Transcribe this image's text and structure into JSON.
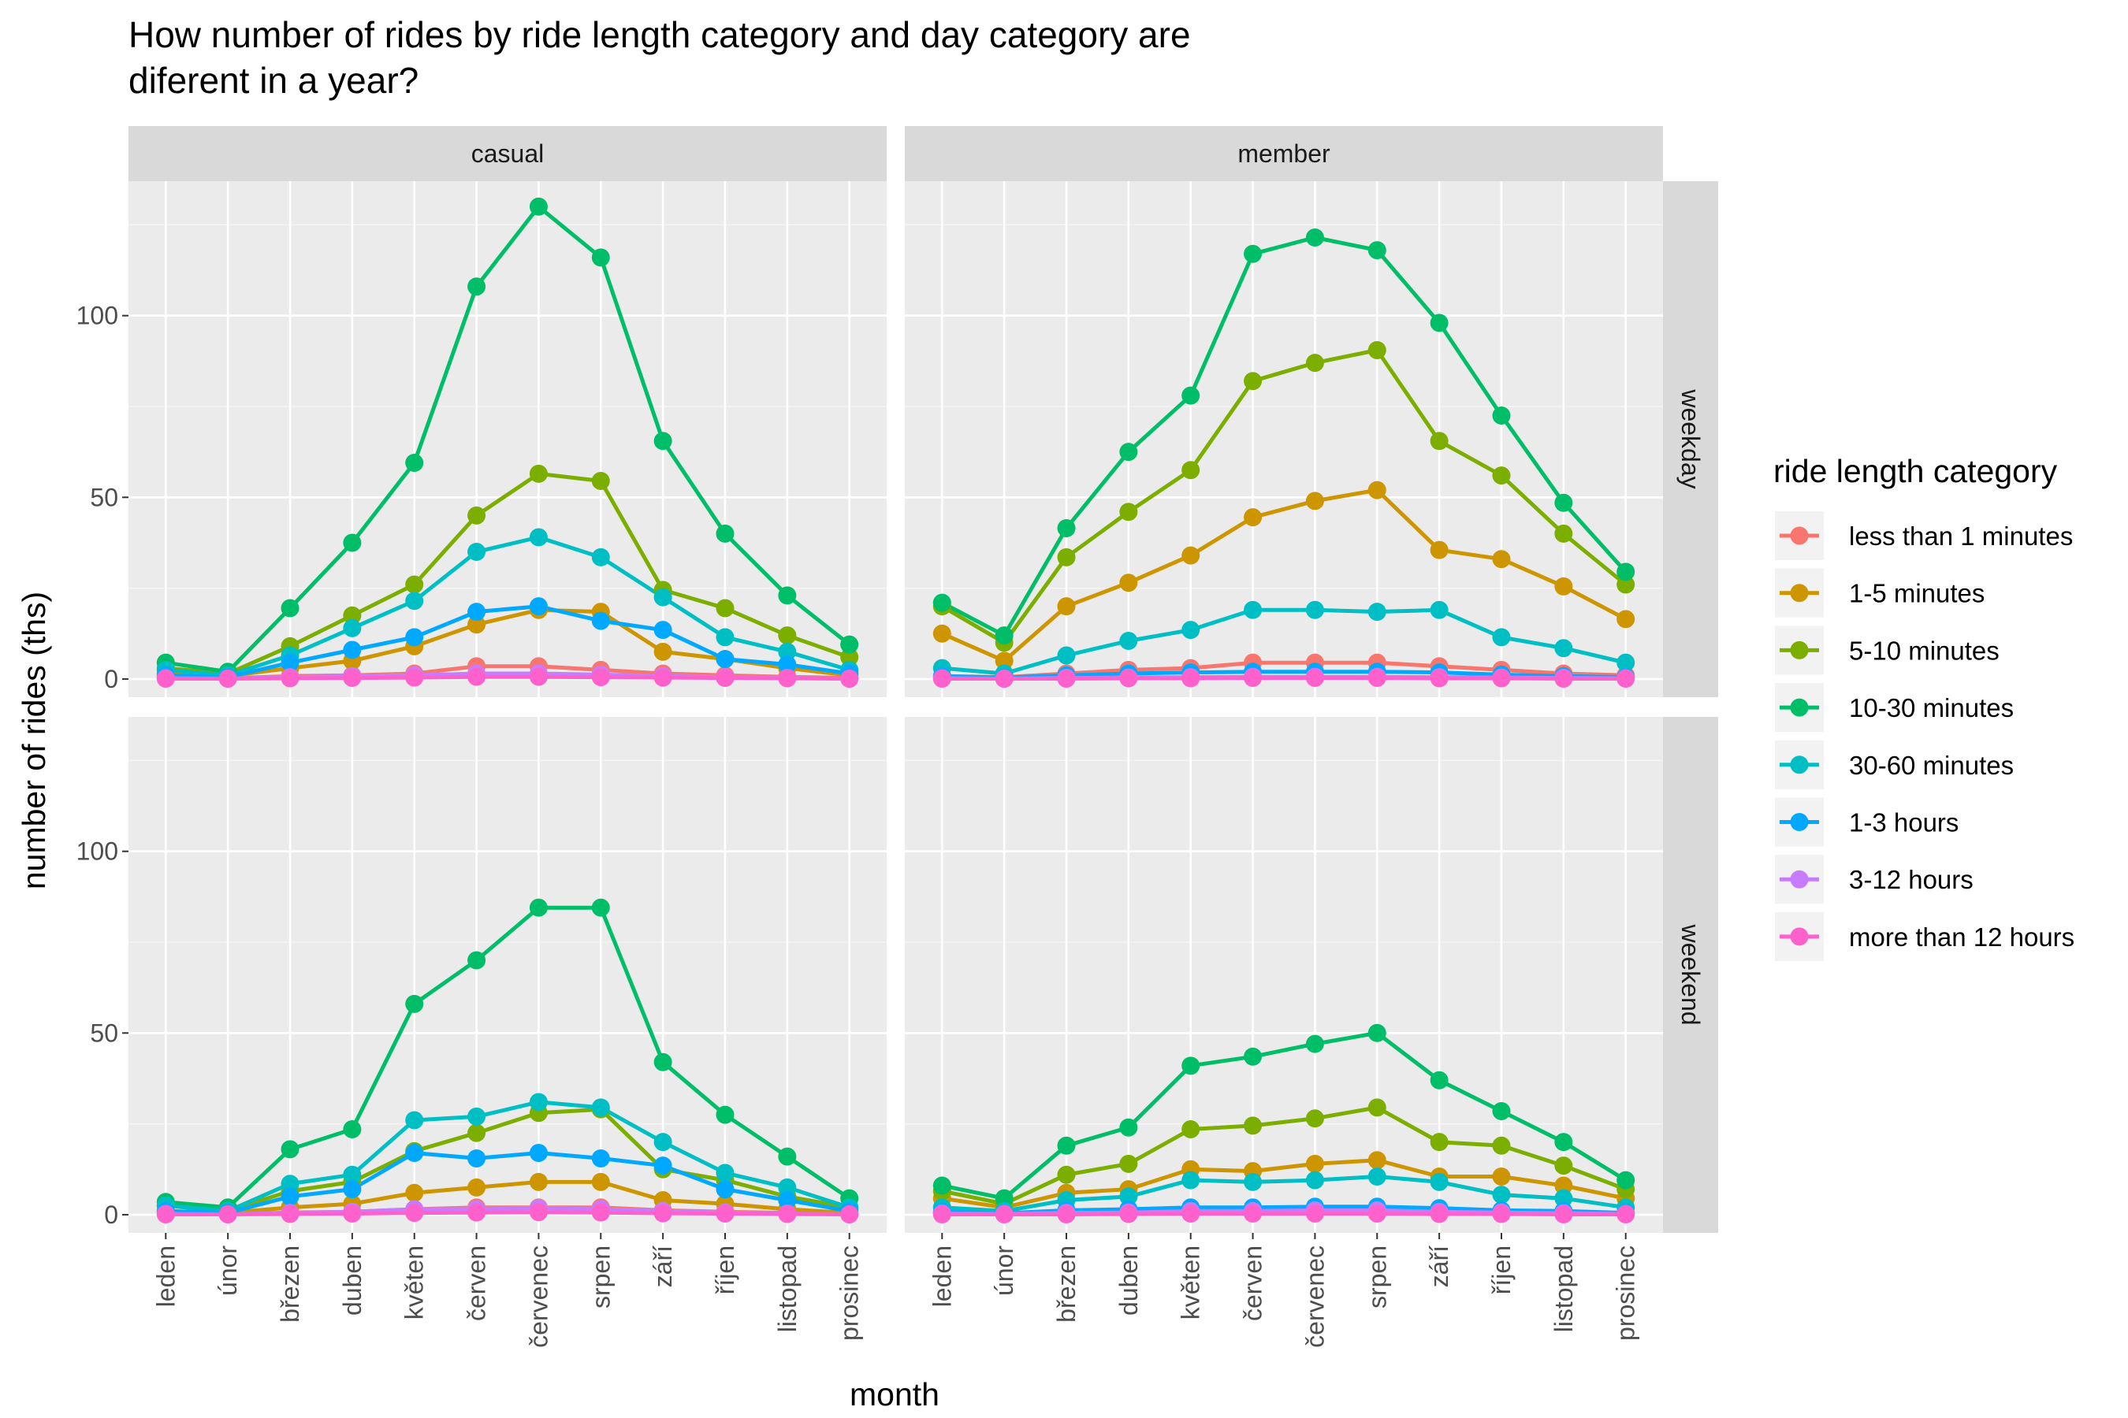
{
  "chart_data": {
    "type": "line",
    "title": "How number of rides by ride length category and day category are diferent in a year?",
    "title_lines": [
      "How number of rides by ride length category and day category are",
      "diferent in a year?"
    ],
    "xlabel": "month",
    "ylabel": "number of rides (ths)",
    "ylim": [
      -5,
      137
    ],
    "yticks": [
      0,
      50,
      100
    ],
    "ytick_labels": [
      "0",
      "50",
      "100"
    ],
    "categories": [
      "leden",
      "únor",
      "březen",
      "duben",
      "květen",
      "červen",
      "červenec",
      "srpen",
      "září",
      "říjen",
      "listopad",
      "prosinec"
    ],
    "grid": true,
    "legend_position": "right",
    "legend_title": "ride length category",
    "facet_cols": [
      "casual",
      "member"
    ],
    "facet_rows": [
      "weekday",
      "weekend"
    ],
    "legend": [
      {
        "name": "less than 1 minutes",
        "color": "#F8766D"
      },
      {
        "name": "1-5 minutes",
        "color": "#CD9600"
      },
      {
        "name": "5-10 minutes",
        "color": "#7CAE00"
      },
      {
        "name": "10-30 minutes",
        "color": "#00BE67"
      },
      {
        "name": "30-60 minutes",
        "color": "#00BFC4"
      },
      {
        "name": "1-3 hours",
        "color": "#00A9FF"
      },
      {
        "name": "3-12 hours",
        "color": "#C77CFF"
      },
      {
        "name": "more than 12 hours",
        "color": "#FF61CC"
      }
    ],
    "panels": [
      {
        "col": "casual",
        "row": "weekday",
        "series": [
          {
            "name": "less than 1 minutes",
            "values": [
              0.3,
              0.2,
              0.8,
              1.0,
              1.5,
              3.5,
              3.5,
              2.5,
              1.5,
              1.0,
              0.6,
              0.3
            ]
          },
          {
            "name": "1-5 minutes",
            "values": [
              1.5,
              0.8,
              3.0,
              5.0,
              9.0,
              15.0,
              19.0,
              18.5,
              7.5,
              5.5,
              3.0,
              1.0
            ]
          },
          {
            "name": "5-10 minutes",
            "values": [
              3.0,
              1.5,
              9.0,
              17.5,
              26.0,
              45.0,
              56.5,
              54.5,
              24.5,
              19.5,
              12.0,
              6.0
            ]
          },
          {
            "name": "10-30 minutes",
            "values": [
              4.5,
              2.0,
              19.5,
              37.5,
              59.5,
              108.0,
              130.0,
              116.0,
              65.5,
              40.0,
              23.0,
              9.5
            ]
          },
          {
            "name": "30-60 minutes",
            "values": [
              2.5,
              1.0,
              6.5,
              14.0,
              21.5,
              35.0,
              39.0,
              33.5,
              22.5,
              11.5,
              7.5,
              2.5
            ]
          },
          {
            "name": "1-3 hours",
            "values": [
              1.0,
              0.5,
              4.5,
              8.0,
              11.5,
              18.5,
              20.0,
              16.0,
              13.5,
              5.5,
              4.0,
              1.5
            ]
          },
          {
            "name": "3-12 hours",
            "values": [
              0.2,
              0.1,
              0.5,
              0.8,
              1.0,
              1.5,
              1.5,
              1.2,
              0.8,
              0.5,
              0.3,
              0.1
            ]
          },
          {
            "name": "more than 12 hours",
            "values": [
              0.1,
              0.1,
              0.2,
              0.3,
              0.4,
              0.6,
              0.6,
              0.5,
              0.4,
              0.3,
              0.2,
              0.1
            ]
          }
        ]
      },
      {
        "col": "member",
        "row": "weekday",
        "series": [
          {
            "name": "less than 1 minutes",
            "values": [
              0.8,
              0.5,
              1.5,
              2.5,
              3.0,
              4.5,
              4.5,
              4.5,
              3.5,
              2.5,
              1.5,
              1.0
            ]
          },
          {
            "name": "1-5 minutes",
            "values": [
              12.5,
              5.0,
              20.0,
              26.5,
              34.0,
              44.5,
              49.0,
              52.0,
              35.5,
              33.0,
              25.5,
              16.5
            ]
          },
          {
            "name": "5-10 minutes",
            "values": [
              20.0,
              10.0,
              33.5,
              46.0,
              57.5,
              82.0,
              87.0,
              90.5,
              65.5,
              56.0,
              40.0,
              26.0
            ]
          },
          {
            "name": "10-30 minutes",
            "values": [
              21.0,
              12.0,
              41.5,
              62.5,
              78.0,
              117.0,
              121.5,
              118.0,
              98.0,
              72.5,
              48.5,
              29.5
            ]
          },
          {
            "name": "30-60 minutes",
            "values": [
              3.0,
              1.5,
              6.5,
              10.5,
              13.5,
              19.0,
              19.0,
              18.5,
              19.0,
              11.5,
              8.5,
              4.5
            ]
          },
          {
            "name": "1-3 hours",
            "values": [
              0.8,
              0.4,
              1.0,
              1.5,
              1.8,
              2.0,
              2.0,
              2.0,
              1.8,
              1.2,
              0.8,
              0.5
            ]
          },
          {
            "name": "3-12 hours",
            "values": [
              0.2,
              0.1,
              0.3,
              0.4,
              0.5,
              0.6,
              0.6,
              0.6,
              0.5,
              0.4,
              0.3,
              0.2
            ]
          },
          {
            "name": "more than 12 hours",
            "values": [
              0.1,
              0.1,
              0.1,
              0.2,
              0.2,
              0.3,
              0.3,
              0.3,
              0.2,
              0.2,
              0.1,
              0.1
            ]
          }
        ]
      },
      {
        "col": "casual",
        "row": "weekend",
        "series": [
          {
            "name": "less than 1 minutes",
            "values": [
              0.3,
              0.2,
              0.6,
              0.8,
              1.5,
              2.0,
              2.0,
              2.0,
              1.2,
              0.8,
              0.5,
              0.2
            ]
          },
          {
            "name": "1-5 minutes",
            "values": [
              1.0,
              0.5,
              2.0,
              3.0,
              6.0,
              7.5,
              9.0,
              9.0,
              4.0,
              3.0,
              1.5,
              0.5
            ]
          },
          {
            "name": "5-10 minutes",
            "values": [
              2.5,
              1.0,
              6.5,
              9.0,
              17.5,
              22.5,
              28.0,
              29.0,
              12.5,
              9.5,
              5.0,
              2.0
            ]
          },
          {
            "name": "10-30 minutes",
            "values": [
              3.5,
              2.0,
              18.0,
              23.5,
              58.0,
              70.0,
              84.5,
              84.5,
              42.0,
              27.5,
              16.0,
              4.5
            ]
          },
          {
            "name": "30-60 minutes",
            "values": [
              2.5,
              1.0,
              8.5,
              11.0,
              26.0,
              27.0,
              31.0,
              29.5,
              20.0,
              11.5,
              7.5,
              2.0
            ]
          },
          {
            "name": "1-3 hours",
            "values": [
              1.0,
              0.5,
              5.0,
              7.0,
              17.0,
              15.5,
              17.0,
              15.5,
              13.5,
              7.0,
              4.0,
              1.0
            ]
          },
          {
            "name": "3-12 hours",
            "values": [
              0.2,
              0.1,
              0.5,
              0.8,
              1.5,
              1.5,
              1.8,
              1.5,
              1.0,
              0.6,
              0.3,
              0.1
            ]
          },
          {
            "name": "more than 12 hours",
            "values": [
              0.1,
              0.1,
              0.2,
              0.3,
              0.5,
              0.6,
              0.7,
              0.6,
              0.4,
              0.3,
              0.2,
              0.1
            ]
          }
        ]
      },
      {
        "col": "member",
        "row": "weekend",
        "series": [
          {
            "name": "less than 1 minutes",
            "values": [
              0.3,
              0.2,
              0.5,
              0.6,
              1.0,
              1.2,
              1.2,
              1.2,
              0.8,
              0.6,
              0.4,
              0.3
            ]
          },
          {
            "name": "1-5 minutes",
            "values": [
              4.5,
              2.0,
              6.0,
              7.0,
              12.5,
              12.0,
              14.0,
              15.0,
              10.5,
              10.5,
              8.0,
              4.5
            ]
          },
          {
            "name": "5-10 minutes",
            "values": [
              6.5,
              3.0,
              11.0,
              14.0,
              23.5,
              24.5,
              26.5,
              29.5,
              20.0,
              19.0,
              13.5,
              7.0
            ]
          },
          {
            "name": "10-30 minutes",
            "values": [
              8.0,
              4.5,
              19.0,
              24.0,
              41.0,
              43.5,
              47.0,
              50.0,
              37.0,
              28.5,
              20.0,
              9.5
            ]
          },
          {
            "name": "30-60 minutes",
            "values": [
              2.0,
              1.0,
              4.0,
              5.0,
              9.5,
              9.0,
              9.5,
              10.5,
              9.0,
              5.5,
              4.5,
              2.0
            ]
          },
          {
            "name": "1-3 hours",
            "values": [
              0.8,
              0.4,
              1.2,
              1.5,
              2.0,
              2.0,
              2.2,
              2.2,
              1.8,
              1.2,
              1.0,
              0.5
            ]
          },
          {
            "name": "3-12 hours",
            "values": [
              0.3,
              0.2,
              0.5,
              0.6,
              1.0,
              1.0,
              1.2,
              1.2,
              0.8,
              0.6,
              0.4,
              0.2
            ]
          },
          {
            "name": "more than 12 hours",
            "values": [
              0.1,
              0.1,
              0.1,
              0.2,
              0.3,
              0.3,
              0.3,
              0.3,
              0.2,
              0.2,
              0.1,
              0.1
            ]
          }
        ]
      }
    ]
  }
}
